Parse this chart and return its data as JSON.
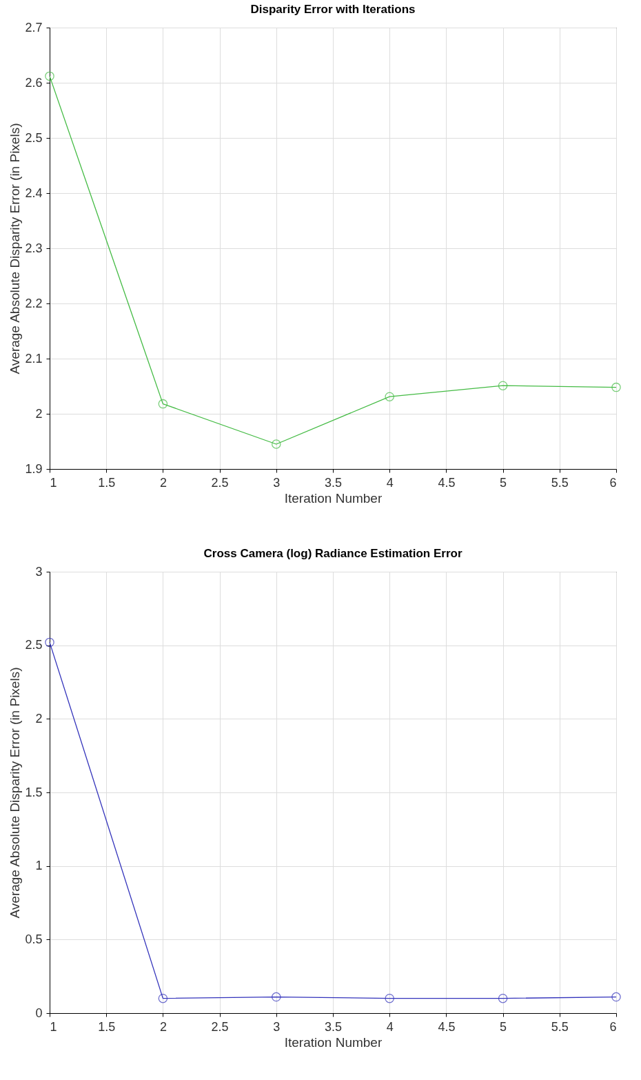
{
  "chart_data": [
    {
      "type": "line",
      "title": "Disparity Error with Iterations",
      "xlabel": "Iteration Number",
      "ylabel": "Average Absolute Disparity Error (in Pixels)",
      "x": [
        1,
        2,
        3,
        4,
        5,
        6
      ],
      "series": [
        {
          "color": "#44bb44",
          "values": [
            2.612,
            2.018,
            1.945,
            2.031,
            2.051,
            2.048
          ]
        }
      ],
      "xlim": [
        1,
        6
      ],
      "xticks": [
        1,
        1.5,
        2,
        2.5,
        3,
        3.5,
        4,
        4.5,
        5,
        5.5,
        6
      ],
      "ylim": [
        1.9,
        2.7
      ],
      "yticks": [
        1.9,
        2,
        2.1,
        2.2,
        2.3,
        2.4,
        2.5,
        2.6,
        2.7
      ],
      "grid": true,
      "marker": "circle",
      "line_style": "solid"
    },
    {
      "type": "line",
      "title": "Cross Camera (log) Radiance Estimation Error",
      "xlabel": "Iteration Number",
      "ylabel": "Average Absolute Disparity Error (in Pixels)",
      "x": [
        1,
        2,
        3,
        4,
        5,
        6
      ],
      "series": [
        {
          "color": "#3333bb",
          "values": [
            2.52,
            0.1,
            0.11,
            0.1,
            0.1,
            0.11
          ]
        }
      ],
      "xlim": [
        1,
        6
      ],
      "xticks": [
        1,
        1.5,
        2,
        2.5,
        3,
        3.5,
        4,
        4.5,
        5,
        5.5,
        6
      ],
      "ylim": [
        0,
        3
      ],
      "yticks": [
        0,
        0.5,
        1,
        1.5,
        2,
        2.5,
        3
      ],
      "grid": true,
      "marker": "circle",
      "line_style": "solid"
    }
  ]
}
